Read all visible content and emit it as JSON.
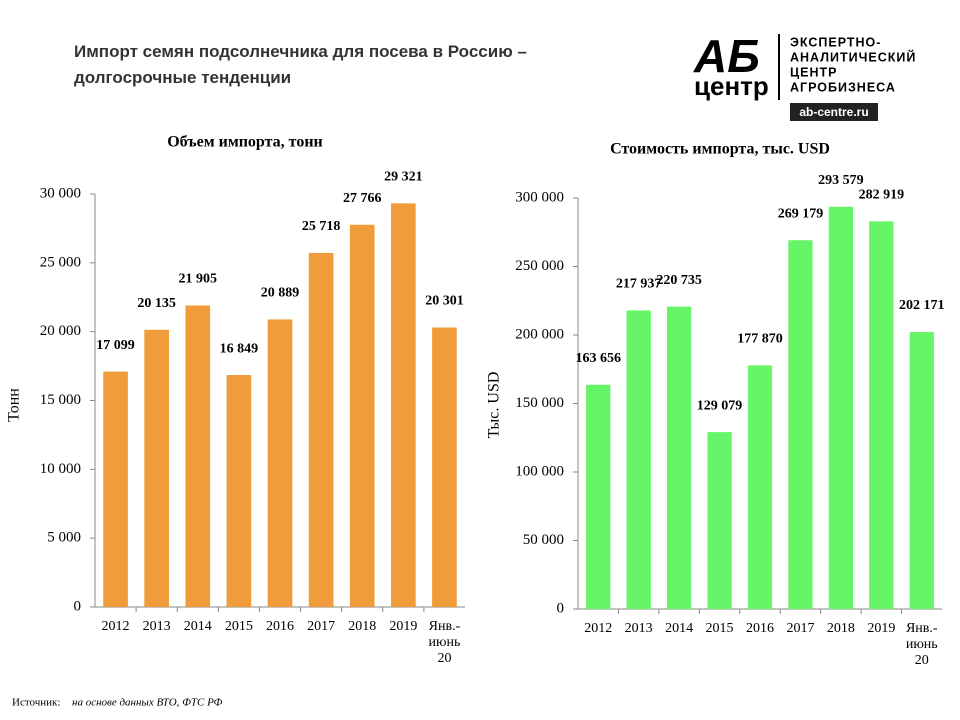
{
  "header": {
    "title_lines": [
      "Импорт семян подсолнечника  для посева в Россию –",
      "долгосрочные  тенденции"
    ],
    "logo": {
      "mark": "АБ",
      "sub": "центр",
      "lines": [
        "ЭКСПЕРТНО-",
        "АНАЛИТИЧЕСКИЙ",
        "ЦЕНТР",
        "АГРОБИЗНЕСА"
      ],
      "url": "ab-centre.ru"
    }
  },
  "source": {
    "label": "Источник:",
    "text": "на основе данных ВТО, ФТС РФ"
  },
  "chart_data": [
    {
      "type": "bar",
      "title": "Объем импорта, тонн",
      "y_label": "Тонн",
      "categories": [
        "2012",
        "2013",
        "2014",
        "2015",
        "2016",
        "2017",
        "2018",
        "2019",
        "Янв.-июнь 20"
      ],
      "values": [
        17099,
        20135,
        21905,
        16849,
        20889,
        25718,
        27766,
        29321,
        20301
      ],
      "value_labels": [
        "17 099",
        "20 135",
        "21 905",
        "16 849",
        "20 889",
        "25 718",
        "27 766",
        "29 321",
        "20 301"
      ],
      "color": "#f09c3a",
      "ylim": [
        0,
        30000
      ],
      "yticks": [
        0,
        {
          "value": 5000,
          "label": "5 000"
        },
        {
          "value": 10000,
          "label": "10 000"
        },
        {
          "value": 15000,
          "label": "15 000"
        },
        {
          "value": 20000,
          "label": "20 000"
        },
        {
          "value": 25000,
          "label": "25 000"
        },
        {
          "value": 30000,
          "label": "30 000"
        }
      ],
      "grid": false
    },
    {
      "type": "bar",
      "title": "Стоимость импорта, тыс. USD",
      "y_label": "Тыс. USD",
      "categories": [
        "2012",
        "2013",
        "2014",
        "2015",
        "2016",
        "2017",
        "2018",
        "2019",
        "Янв.-июнь 20"
      ],
      "values": [
        163656,
        217937,
        220735,
        129079,
        177870,
        269179,
        293579,
        282919,
        202171
      ],
      "value_labels": [
        "163 656",
        "217 937",
        "220 735",
        "129 079",
        "177 870",
        "269 179",
        "293 579",
        "282 919",
        "202 171"
      ],
      "color": "#66f566",
      "ylim": [
        0,
        300000
      ],
      "yticks": [
        0,
        {
          "value": 50000,
          "label": "50 000"
        },
        {
          "value": 100000,
          "label": "100 000"
        },
        {
          "value": 150000,
          "label": "150 000"
        },
        {
          "value": 200000,
          "label": "200 000"
        },
        {
          "value": 250000,
          "label": "250 000"
        },
        {
          "value": 300000,
          "label": "300 000"
        }
      ],
      "grid": false
    }
  ]
}
